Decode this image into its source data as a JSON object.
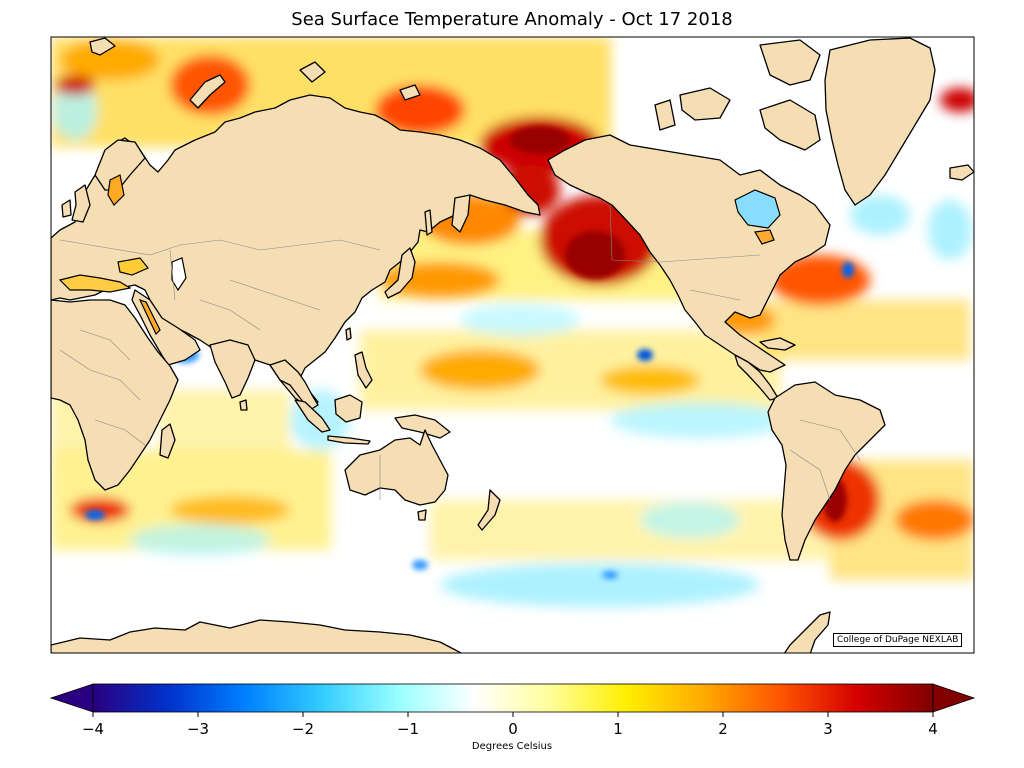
{
  "title": "Sea Surface Temperature Anomaly - Oct 17 2018",
  "credit": "College of DuPage NEXLAB",
  "colorbar": {
    "label": "Degrees Celsius",
    "min": -4,
    "max": 4,
    "ticks": [
      "−4",
      "−3",
      "−2",
      "−1",
      "0",
      "1",
      "2",
      "3",
      "4"
    ],
    "extend": "both",
    "colors": [
      "#2a0080",
      "#0033cc",
      "#0080ff",
      "#33ccff",
      "#99ffff",
      "#ffffff",
      "#ffff99",
      "#ffee00",
      "#ffaa00",
      "#ff5500",
      "#d40000",
      "#800000"
    ]
  },
  "map_colors": {
    "land": "#f5deb3",
    "ocean": "#ffffff",
    "coast": "#000000",
    "border": "#808080"
  }
}
